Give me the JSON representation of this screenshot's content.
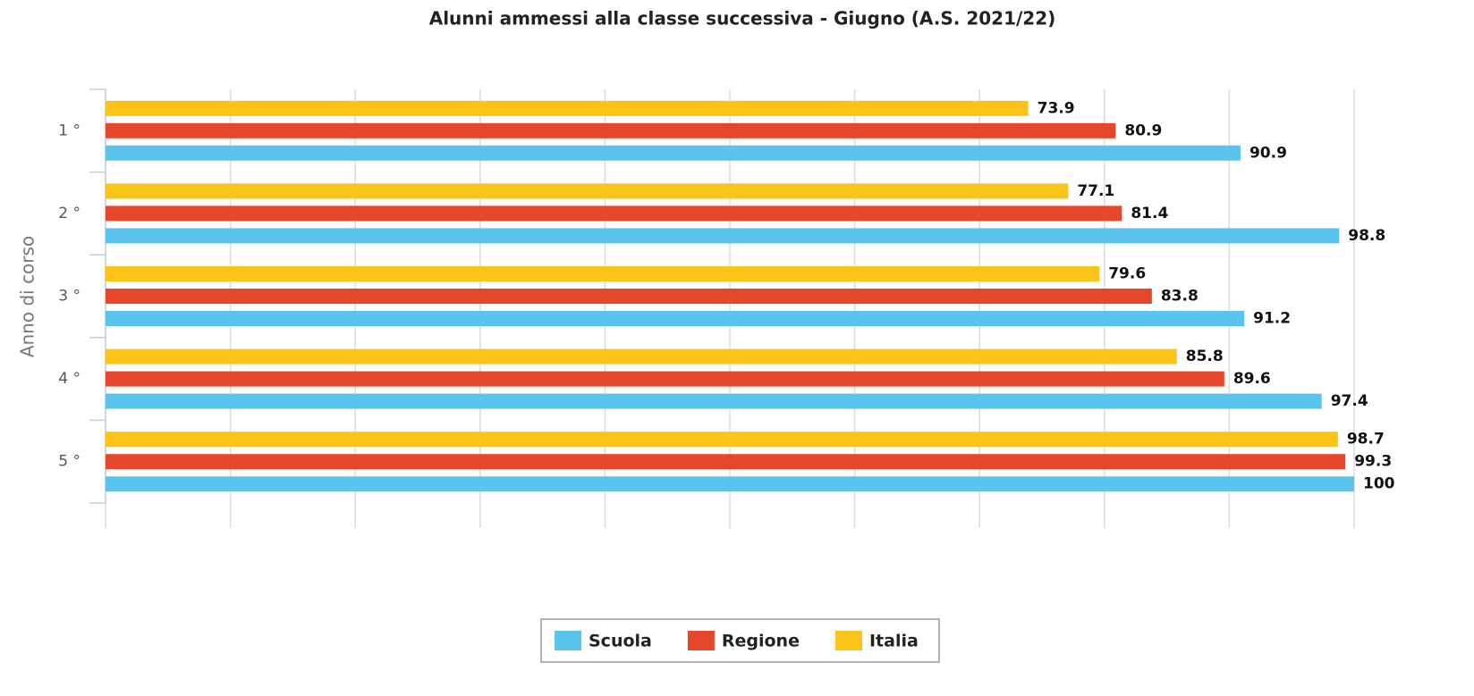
{
  "chart_data": {
    "type": "bar",
    "orientation": "horizontal",
    "title": "Alunni ammessi alla classe successiva - Giugno (A.S. 2021/22)",
    "y_label": "Anno di corso",
    "categories": [
      "1 °",
      "2 °",
      "3 °",
      "4 °",
      "5 °"
    ],
    "series": [
      {
        "name": "Scuola",
        "color": "#5bc4ec",
        "values": [
          90.9,
          98.8,
          91.2,
          97.4,
          100
        ]
      },
      {
        "name": "Regione",
        "color": "#e5472a",
        "values": [
          80.9,
          81.4,
          83.8,
          89.6,
          99.3
        ]
      },
      {
        "name": "Italia",
        "color": "#fcc419",
        "values": [
          73.9,
          77.1,
          79.6,
          85.8,
          98.7
        ]
      }
    ],
    "xlim": [
      0,
      100
    ],
    "xticks": [
      0,
      10,
      20,
      30,
      40,
      50,
      60,
      70,
      80,
      90,
      100
    ],
    "grid": true,
    "legend": "bottom"
  }
}
